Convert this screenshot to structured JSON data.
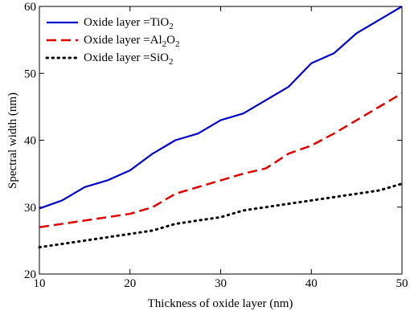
{
  "chart_data": {
    "type": "line",
    "title": "",
    "xlabel": "Thickness of oxide layer (nm)",
    "ylabel": "Spectral width (nm)",
    "xlim": [
      10,
      50
    ],
    "ylim": [
      20,
      60
    ],
    "xticks": [
      10,
      20,
      30,
      40,
      50
    ],
    "yticks": [
      20,
      30,
      40,
      50,
      60
    ],
    "grid": false,
    "legend_position": "top-left",
    "x": [
      10,
      12.5,
      15,
      17.5,
      20,
      22.5,
      25,
      27.5,
      30,
      32.5,
      35,
      37.5,
      40,
      42.5,
      45,
      47.5,
      50
    ],
    "series": [
      {
        "label_prefix": "Oxide layer =",
        "label_main": "TiO",
        "label_sub": "2",
        "label_main2": "",
        "label_sub2": "",
        "color": "#0000cc",
        "style": "solid",
        "values": [
          29.8,
          31,
          33,
          34,
          35.5,
          38,
          40,
          41,
          43,
          44,
          46,
          48,
          51.5,
          53,
          56,
          58,
          60
        ]
      },
      {
        "label_prefix": "Oxide layer =",
        "label_main": "Al",
        "label_sub": "2",
        "label_main2": "O",
        "label_sub2": "2",
        "color": "#e00000",
        "style": "dashed",
        "values": [
          27,
          27.5,
          28,
          28.5,
          29,
          30,
          32,
          33,
          34,
          35,
          35.8,
          38,
          39.2,
          41,
          43,
          45,
          47
        ]
      },
      {
        "label_prefix": "Oxide layer =",
        "label_main": "SiO",
        "label_sub": "2",
        "label_main2": "",
        "label_sub2": "",
        "color": "#000000",
        "style": "dotted",
        "values": [
          24,
          24.5,
          25,
          25.5,
          26,
          26.5,
          27.5,
          28,
          28.5,
          29.5,
          30,
          30.5,
          31,
          31.5,
          32,
          32.5,
          33.5
        ]
      }
    ]
  }
}
